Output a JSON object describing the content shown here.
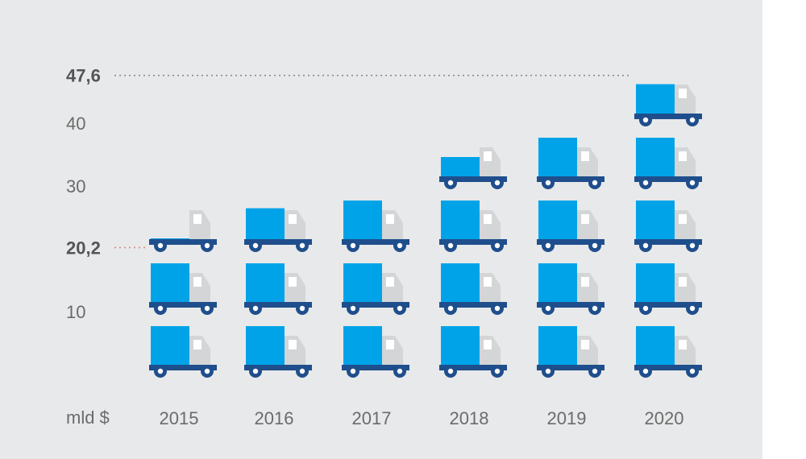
{
  "chart_data": {
    "type": "bar",
    "categories": [
      "2015",
      "2016",
      "2017",
      "2018",
      "2019",
      "2020"
    ],
    "values": [
      20.2,
      28,
      30,
      35,
      40,
      47.6
    ],
    "y_unit_label": "mld $",
    "yticks": [
      10,
      20.2,
      30,
      40,
      47.6
    ],
    "ytick_labels": [
      "10",
      "20,2",
      "30",
      "40",
      "47,6"
    ],
    "highlighted_ticks": [
      "20,2",
      "47,6"
    ],
    "ylim": [
      0,
      50
    ],
    "units_per_icon": 10,
    "icon": "truck-icon",
    "grid": false,
    "legend": "none"
  },
  "colors": {
    "background": "#e8e9ea",
    "cargo": "#00a3e8",
    "cab": "#d3d5d7",
    "chassis": "#1f4e8c",
    "text": "#6b6b6b",
    "reference_line_dark": "#8a8a8a",
    "reference_line_red": "#d98a8a"
  }
}
